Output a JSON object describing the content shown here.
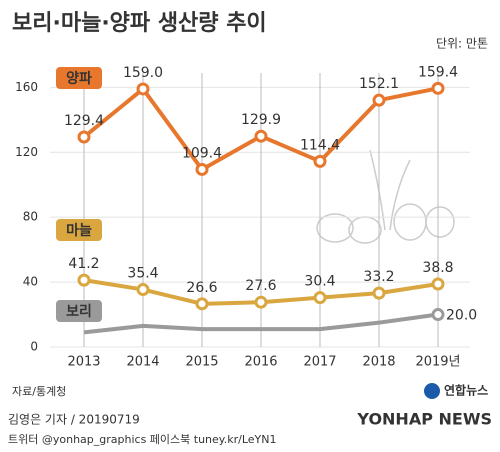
{
  "chart_data": {
    "type": "line",
    "title": "보리·마늘·양파 생산량 추이",
    "unit": "단위: 만톤",
    "categories": [
      "2013",
      "2014",
      "2015",
      "2016",
      "2017",
      "2018",
      "2019년"
    ],
    "series": [
      {
        "name": "양파",
        "color": "#e8772e",
        "values": [
          129.4,
          159.0,
          109.4,
          129.9,
          114.4,
          152.1,
          159.4
        ],
        "value_labels": [
          "129.4",
          "159.0",
          "109.4",
          "129.9",
          "114.4",
          "152.1",
          "159.4"
        ]
      },
      {
        "name": "마늘",
        "color": "#d9a640",
        "values": [
          41.2,
          35.4,
          26.6,
          27.6,
          30.4,
          33.2,
          38.8
        ]
      },
      {
        "name": "보리",
        "color": "#9a9a9a",
        "values": [
          9,
          13,
          11,
          11,
          11,
          15,
          20
        ],
        "value_labels": [
          null,
          null,
          null,
          null,
          null,
          null,
          "20.0"
        ]
      }
    ],
    "ylim": [
      0,
      175
    ],
    "yticks": [
      0,
      40,
      80,
      120,
      160
    ],
    "grid": true
  },
  "source": "자료/통계청",
  "byline": "김영은 기자 / 20190719",
  "social": "트위터 @yonhap_graphics  페이스북 tuney.kr/LeYN1",
  "brand": "연합뉴스",
  "brand_en": "YONHAP NEWS"
}
